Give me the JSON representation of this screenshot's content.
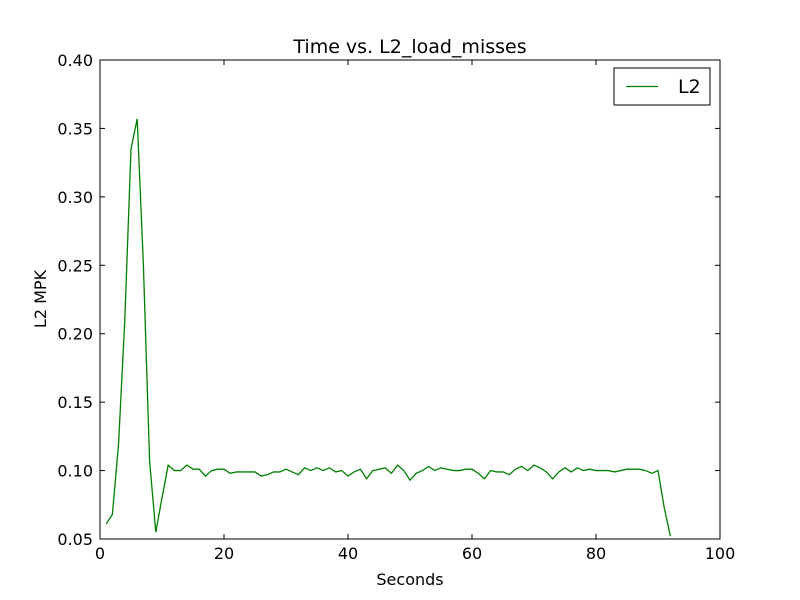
{
  "chart_data": {
    "type": "line",
    "title": "Time vs. L2_load_misses",
    "xlabel": "Seconds",
    "ylabel": "L2 MPK",
    "xlim": [
      0,
      100
    ],
    "ylim": [
      0.05,
      0.4
    ],
    "xticks": [
      0,
      20,
      40,
      60,
      80,
      100
    ],
    "yticks": [
      0.05,
      0.1,
      0.15,
      0.2,
      0.25,
      0.3,
      0.35,
      0.4
    ],
    "xtick_labels": [
      "0",
      "20",
      "40",
      "60",
      "80",
      "100"
    ],
    "ytick_labels": [
      "0.05",
      "0.10",
      "0.15",
      "0.20",
      "0.25",
      "0.30",
      "0.35",
      "0.40"
    ],
    "grid": false,
    "legend_position": "top-right",
    "series": [
      {
        "name": "L2",
        "color": "#008000",
        "x": [
          1,
          2,
          3,
          4,
          5,
          6,
          7,
          8,
          9,
          10,
          11,
          12,
          13,
          14,
          15,
          16,
          17,
          18,
          19,
          20,
          21,
          22,
          23,
          24,
          25,
          26,
          27,
          28,
          29,
          30,
          31,
          32,
          33,
          34,
          35,
          36,
          37,
          38,
          39,
          40,
          41,
          42,
          43,
          44,
          45,
          46,
          47,
          48,
          49,
          50,
          51,
          52,
          53,
          54,
          55,
          56,
          57,
          58,
          59,
          60,
          61,
          62,
          63,
          64,
          65,
          66,
          67,
          68,
          69,
          70,
          71,
          72,
          73,
          74,
          75,
          76,
          77,
          78,
          79,
          80,
          81,
          82,
          83,
          84,
          85,
          86,
          87,
          88,
          89,
          90,
          91,
          92
        ],
        "y": [
          0.061,
          0.068,
          0.12,
          0.21,
          0.335,
          0.357,
          0.25,
          0.107,
          0.055,
          0.08,
          0.104,
          0.1,
          0.1,
          0.104,
          0.101,
          0.101,
          0.096,
          0.1,
          0.101,
          0.101,
          0.098,
          0.099,
          0.099,
          0.099,
          0.099,
          0.096,
          0.097,
          0.099,
          0.099,
          0.101,
          0.099,
          0.097,
          0.102,
          0.1,
          0.102,
          0.1,
          0.102,
          0.099,
          0.1,
          0.096,
          0.099,
          0.101,
          0.094,
          0.1,
          0.101,
          0.102,
          0.098,
          0.104,
          0.1,
          0.093,
          0.098,
          0.1,
          0.103,
          0.1,
          0.102,
          0.101,
          0.1,
          0.1,
          0.101,
          0.101,
          0.098,
          0.094,
          0.1,
          0.099,
          0.099,
          0.097,
          0.101,
          0.103,
          0.1,
          0.104,
          0.102,
          0.099,
          0.094,
          0.099,
          0.102,
          0.099,
          0.102,
          0.1,
          0.101,
          0.1,
          0.1,
          0.1,
          0.099,
          0.1,
          0.101,
          0.101,
          0.101,
          0.1,
          0.098,
          0.1,
          0.073,
          0.052
        ]
      }
    ]
  }
}
